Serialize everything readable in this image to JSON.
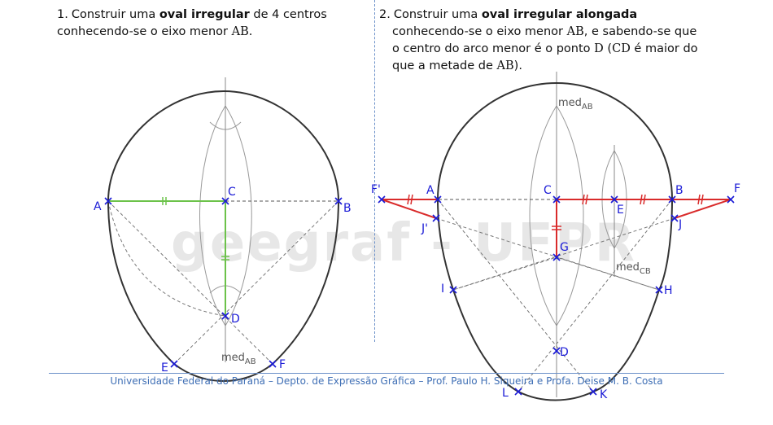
{
  "watermark": "geegraf - UFPR",
  "exercise1": {
    "number": "1.",
    "text_before": "Construir uma ",
    "bold": "oval irregular",
    "text_after": " de 4 centros conhecendo-se o eixo menor ",
    "segment": "AB",
    "end": "."
  },
  "exercise2": {
    "number": "2.",
    "text_before": "Construir uma ",
    "bold": "oval irregular alongada",
    "line2_a": "conhecendo-se o eixo menor ",
    "seg_ab": "AB",
    "line2_b": ", e sabendo-se que",
    "line3_a": "o centro do arco menor é o ponto ",
    "pt_d": "D",
    "line3_b": " (",
    "seg_cd": "CD",
    "line3_c": " é maior do",
    "line4_a": "que a metade de ",
    "seg_ab2": "AB",
    "line4_b": ")."
  },
  "footer": "Universidade Federal do Paraná – Depto. de Expressão Gráfica – Prof. Paulo H. Siqueira e Profa. Deise M. B. Costa",
  "fig1": {
    "points": {
      "A": "A",
      "B": "B",
      "C": "C",
      "D": "D",
      "E": "E",
      "F": "F"
    },
    "med": "med",
    "med_sub": "AB"
  },
  "fig2": {
    "points": {
      "F1": "F'",
      "A": "A",
      "C": "C",
      "E": "E",
      "B": "B",
      "F": "F",
      "J1": "J'",
      "J": "J",
      "G": "G",
      "I": "I",
      "H": "H",
      "D": "D",
      "L": "L",
      "K": "K"
    },
    "med1": "med",
    "med1_sub": "AB",
    "med2": "med",
    "med2_sub": "CB"
  },
  "colors": {
    "outline": "#333333",
    "green": "#6cc24a",
    "red": "#d92b2b",
    "blue": "#1a1ad6",
    "construction": "#888888",
    "divider": "#6a8fc8"
  }
}
